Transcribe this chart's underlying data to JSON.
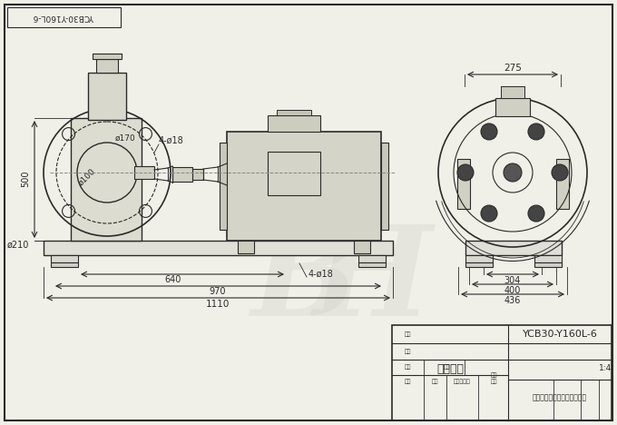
{
  "bg_color": "#f0f0e8",
  "line_color": "#2a2a2a",
  "dim_color": "#2a2a2a",
  "title_box_text": "机组外型",
  "company_name": "泊头市北弧泵业制造有限公司",
  "model": "YCB30-Y160L-6",
  "scale": "1:4",
  "drawing_no_rotated": "YCB30-Y160L-6",
  "dims": {
    "total_length": "1110",
    "d970": "970",
    "d640": "640",
    "height": "500",
    "phi210": "ø210",
    "phi100": "ø100",
    "phi170": "ø170",
    "bolt4_18_left": "4-ø18",
    "bolt4_18_right": "4-ø18",
    "side_275": "275",
    "side_304": "304",
    "side_400": "400",
    "side_436": "436"
  }
}
